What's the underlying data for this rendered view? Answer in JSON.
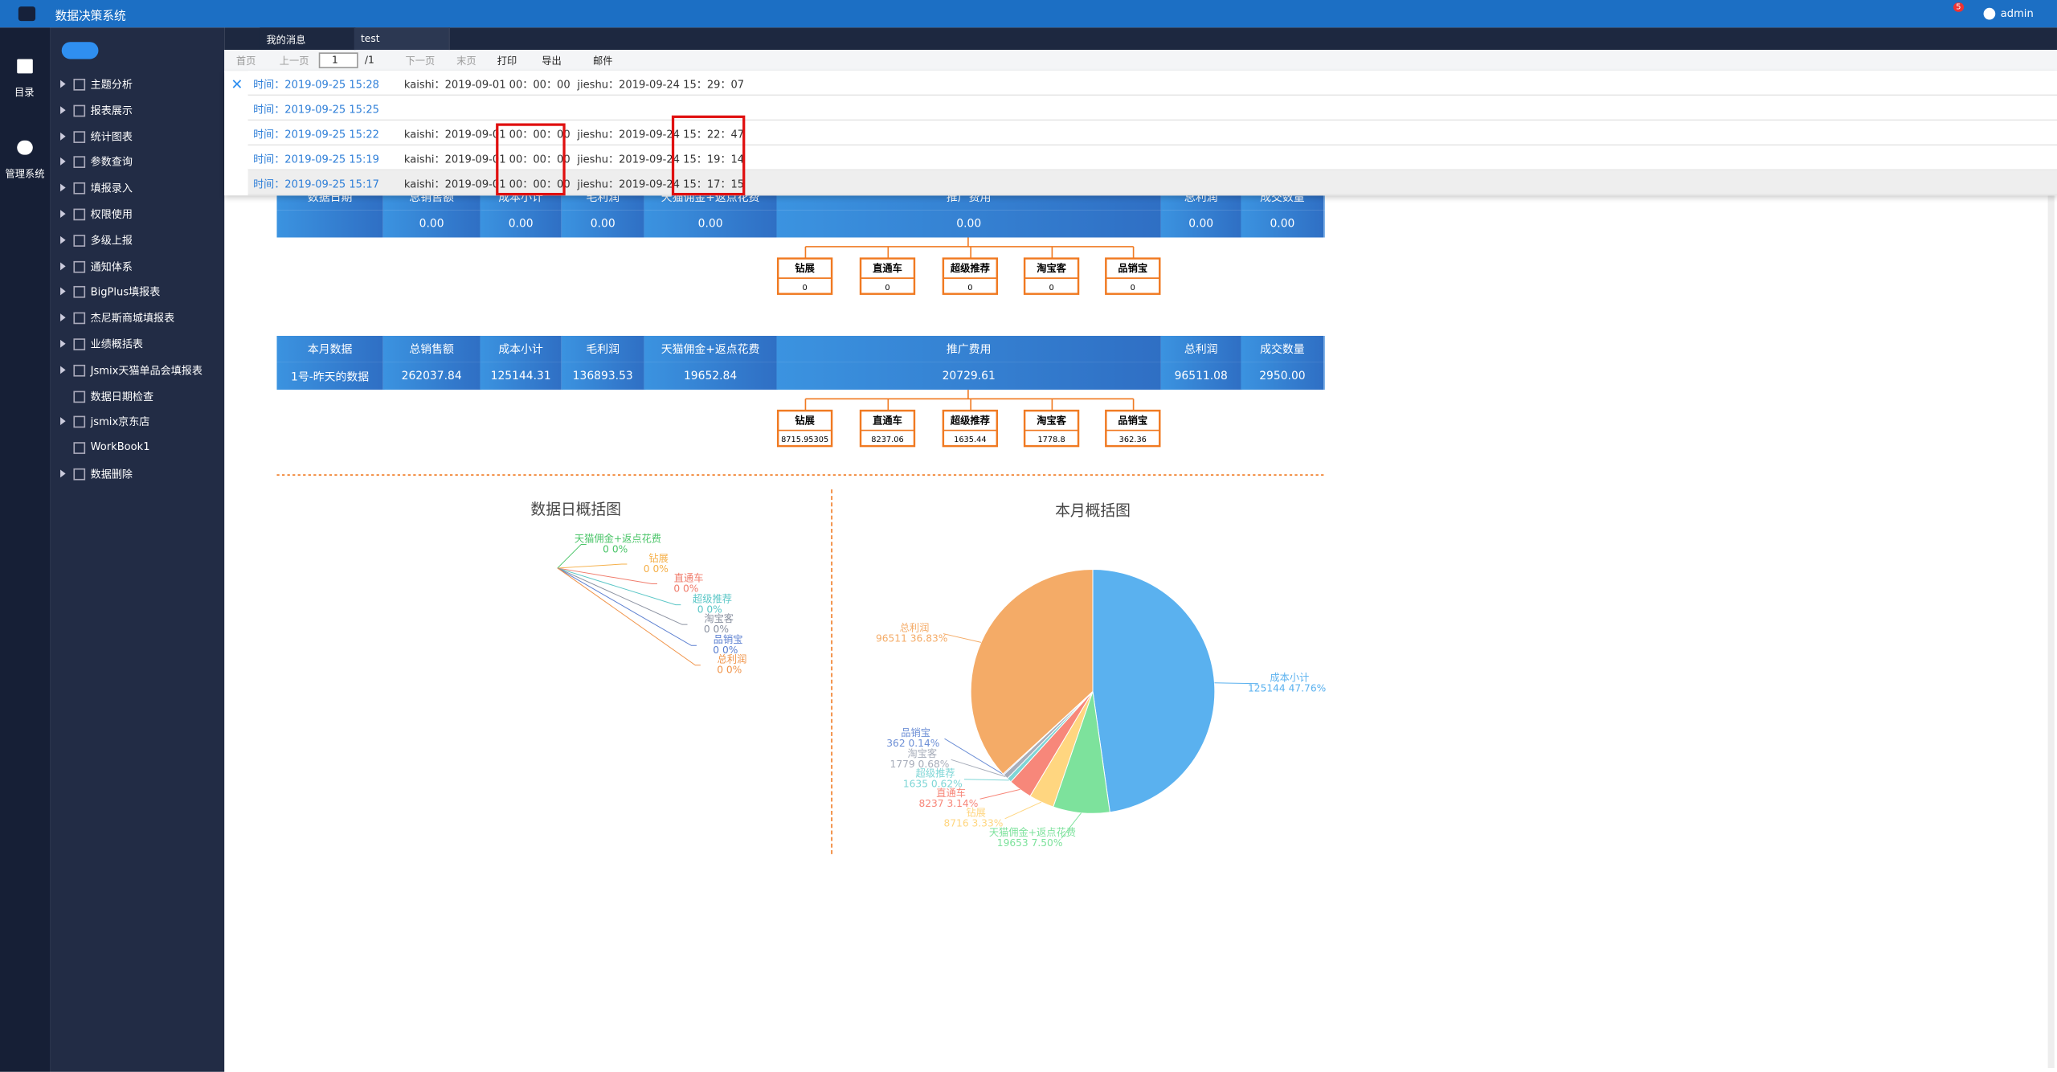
{
  "header": {
    "title": "数据决策系统",
    "badge": "5",
    "user": "admin"
  },
  "leftnav": [
    "目录",
    "管理系统"
  ],
  "sidebar": [
    {
      "label": "主题分析",
      "type": "folder"
    },
    {
      "label": "报表展示",
      "type": "folder"
    },
    {
      "label": "统计图表",
      "type": "folder"
    },
    {
      "label": "参数查询",
      "type": "folder"
    },
    {
      "label": "填报录入",
      "type": "folder"
    },
    {
      "label": "权限使用",
      "type": "folder"
    },
    {
      "label": "多级上报",
      "type": "folder"
    },
    {
      "label": "通知体系",
      "type": "folder"
    },
    {
      "label": "BigPlus填报表",
      "type": "folder"
    },
    {
      "label": "杰尼斯商城填报表",
      "type": "folder"
    },
    {
      "label": "业绩概括表",
      "type": "folder"
    },
    {
      "label": "Jsmix天猫单品会填报表",
      "type": "folder"
    },
    {
      "label": "数据日期检查",
      "type": "file"
    },
    {
      "label": "jsmix京东店",
      "type": "folder"
    },
    {
      "label": "WorkBook1",
      "type": "file"
    },
    {
      "label": "数据删除",
      "type": "folder"
    }
  ],
  "tabs": [
    "我的消息",
    "test"
  ],
  "toolbar": [
    "首页",
    "上一页",
    "1",
    "/1",
    "下一页",
    "末页",
    "打印",
    "导出",
    "邮件"
  ],
  "messages": [
    {
      "time": "时间：2019-09-25 15:28",
      "kaishi": "kaishi：2019-09-01 00：00：00",
      "jieshu": "jieshu：2019-09-24 15：29：07"
    },
    {
      "time": "时间：2019-09-25 15:25"
    },
    {
      "time": "时间：2019-09-25 15:22",
      "kaishi": "kaishi：2019-09-01 00：00：00",
      "jieshu": "jieshu：2019-09-24 15：22：47"
    },
    {
      "time": "时间：2019-09-25 15:19",
      "kaishi": "kaishi：2019-09-01 00：00：00",
      "jieshu": "jieshu：2019-09-24 15：19：14"
    },
    {
      "time": "时间：2019-09-25 15:17",
      "kaishi": "kaishi：2019-09-01 00：00：00",
      "jieshu": "jieshu：2019-09-24 15：17：15"
    }
  ],
  "tables": [
    {
      "columns": [
        {
          "header": "数据日期"
        },
        {
          "header": "总销售额",
          "value": "0.00"
        },
        {
          "header": "成本小计",
          "value": "0.00"
        },
        {
          "header": "毛利润",
          "value": "0.00"
        },
        {
          "header": "天猫佣金+返点花费",
          "value": "0.00"
        },
        {
          "header": "推广费用",
          "value": "0.00"
        },
        {
          "header": "总利润",
          "value": "0.00"
        },
        {
          "header": "成交数量",
          "value": "0.00"
        }
      ],
      "tree": [
        {
          "label": "钻展",
          "value": 0
        },
        {
          "label": "直通车",
          "value": 0
        },
        {
          "label": "超级推荐",
          "value": 0
        },
        {
          "label": "淘宝客",
          "value": 0
        },
        {
          "label": "品销宝",
          "value": 0
        }
      ]
    },
    {
      "columns": [
        {
          "header": "本月数据",
          "value": "1号-昨天的数据"
        },
        {
          "header": "总销售额",
          "value": "262037.84"
        },
        {
          "header": "成本小计",
          "value": "125144.31"
        },
        {
          "header": "毛利润",
          "value": "136893.53"
        },
        {
          "header": "天猫佣金+返点花费",
          "value": "19652.84"
        },
        {
          "header": "推广费用",
          "value": "20729.61"
        },
        {
          "header": "总利润",
          "value": "96511.08"
        },
        {
          "header": "成交数量",
          "value": "2950.00"
        }
      ],
      "tree": [
        {
          "label": "钻展",
          "value": 8715.95305
        },
        {
          "label": "直通车",
          "value": 8237.06
        },
        {
          "label": "超级推荐",
          "value": 1635.44
        },
        {
          "label": "淘宝客",
          "value": 1778.8
        },
        {
          "label": "品销宝",
          "value": 362.36
        }
      ]
    }
  ],
  "chart_data": [
    {
      "type": "pie",
      "title": "数据日概括图",
      "categories": [
        "天猫佣金+返点花费",
        "钻展",
        "直通车",
        "超级推荐",
        "淘宝客",
        "品销宝",
        "总利润"
      ],
      "values": [
        0,
        0,
        0,
        0,
        0,
        0,
        0
      ],
      "value_labels": [
        "0 0%",
        "0 0%",
        "0 0%",
        "0 0%",
        "0 0%",
        "0 0%",
        "0 0%"
      ],
      "colors": [
        "#4cc56a",
        "#f5b04a",
        "#f07c6c",
        "#5cc7c7",
        "#8a91a0",
        "#5b7fd0",
        "#f0944a"
      ]
    },
    {
      "type": "pie",
      "title": "本月概括图",
      "categories": [
        "成本小计",
        "天猫佣金+返点花费",
        "钻展",
        "直通车",
        "超级推荐",
        "淘宝客",
        "品销宝",
        "总利润"
      ],
      "values": [
        125144,
        19653,
        8716,
        8237,
        1635,
        1779,
        362,
        96511
      ],
      "value_labels": [
        "125144 47.76%",
        "19653 7.50%",
        "8716 3.33%",
        "8237 3.14%",
        "1635 0.62%",
        "1779 0.68%",
        "362 0.14%",
        "96511 36.83%"
      ],
      "colors": [
        "#5ab1ef",
        "#7de29c",
        "#ffd680",
        "#f7877a",
        "#7ed6d6",
        "#a7adba",
        "#6d8fd6",
        "#f4ab67"
      ]
    }
  ]
}
